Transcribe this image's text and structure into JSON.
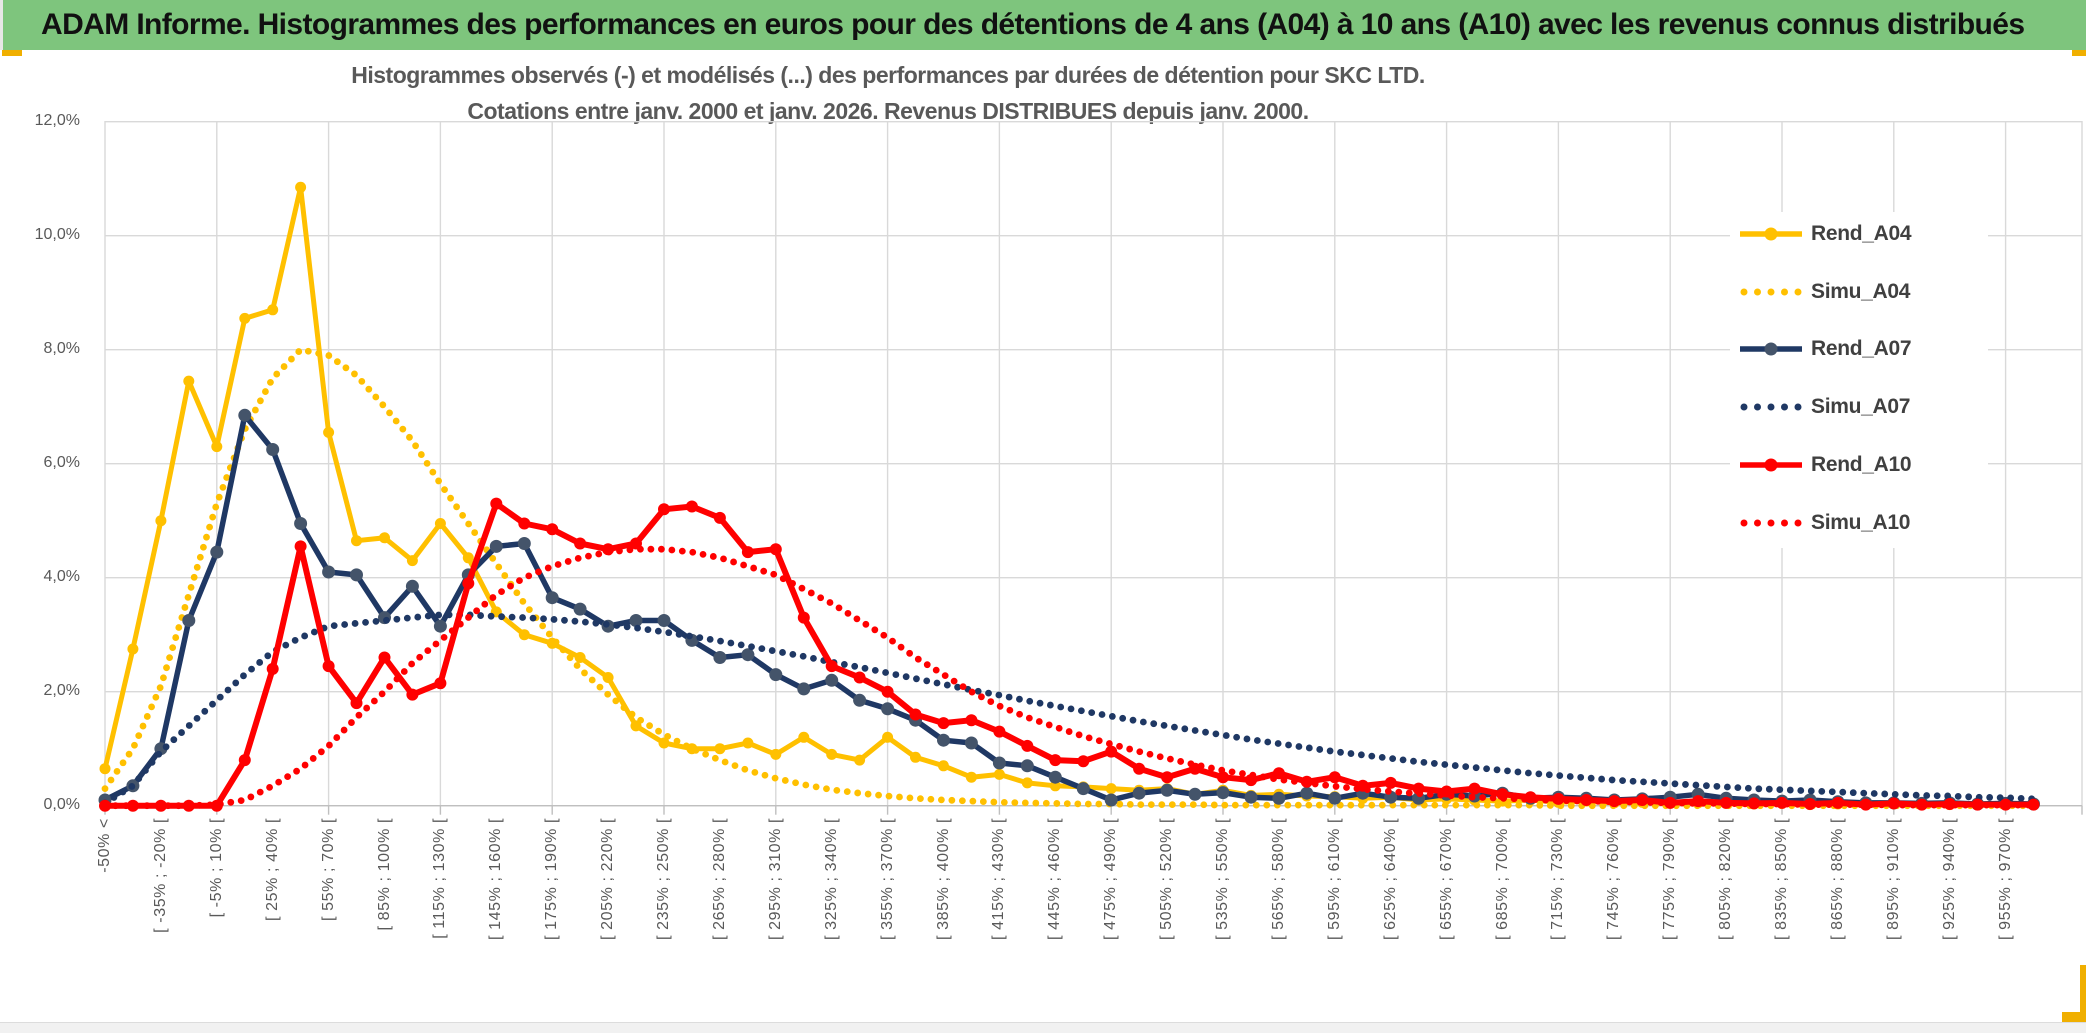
{
  "banner": {
    "title": "ADAM Informe. Histogrammes des performances en euros pour des détentions de 4 ans (A04) à 10 ans (A10) avec les revenus connus distribués"
  },
  "chart": {
    "title_line1": "Histogrammes observés (-) et modélisés (...) des performances par durées de détention pour SKC LTD.",
    "title_line2": "Cotations entre janv. 2000 et janv. 2026. Revenus DISTRIBUES depuis janv. 2000."
  },
  "colors": {
    "gold": "#FFC000",
    "navy": "#1F3864",
    "navy_marker": "#44546A",
    "red": "#FF0000",
    "grid": "#D9D9D9",
    "axis_line": "#BFBFBF",
    "axis_text": "#595959",
    "banner_green": "#7EC57D",
    "frame_gold": "#F0AF00"
  },
  "legend": [
    {
      "label": "Rend_A04",
      "color": "#FFC000",
      "style": "solid"
    },
    {
      "label": "Simu_A04",
      "color": "#FFC000",
      "style": "dotted"
    },
    {
      "label": "Rend_A07",
      "color": "#1F3864",
      "marker": "#44546A",
      "style": "solid"
    },
    {
      "label": "Simu_A07",
      "color": "#1F3864",
      "style": "dotted"
    },
    {
      "label": "Rend_A10",
      "color": "#FF0000",
      "style": "solid"
    },
    {
      "label": "Simu_A10",
      "color": "#FF0000",
      "style": "dotted"
    }
  ],
  "chart_data": {
    "type": "line",
    "title": "Histogrammes observés (-) et modélisés (...) des performances par durées de détention pour SKC LTD. Cotations entre janv. 2000 et janv. 2026. Revenus DISTRIBUES depuis janv. 2000.",
    "ylim": [
      0,
      12
    ],
    "y_unit": "percent",
    "grid": true,
    "legend_position": "right-inside",
    "y_tick_labels": [
      "0,0%",
      "2,0%",
      "4,0%",
      "6,0%",
      "8,0%",
      "10,0%",
      "12,0%"
    ],
    "n_points": 70,
    "x_label_interval": 2,
    "x_gridline_interval": 4,
    "x_tick_labels": [
      "-50% <",
      "[ -35% ; -20% [",
      "[ -5% ; 10% [",
      "[ 25% ; 40% [",
      "[ 55% ; 70% [",
      "[ 85% ; 100% [",
      "[ 115% ; 130% [",
      "[ 145% ; 160% [",
      "[ 175% ; 190% [",
      "[ 205% ; 220% [",
      "[ 235% ; 250% [",
      "[ 265% ; 280% [",
      "[ 295% ; 310% [",
      "[ 325% ; 340% [",
      "[ 355% ; 370% [",
      "[ 385% ; 400% [",
      "[ 415% ; 430% [",
      "[ 445% ; 460% [",
      "[ 475% ; 490% [",
      "[ 505% ; 520% [",
      "[ 535% ; 550% [",
      "[ 565% ; 580% [",
      "[ 595% ; 610% [",
      "[ 625% ; 640% [",
      "[ 655% ; 670% [",
      "[ 685% ; 700% [",
      "[ 715% ; 730% [",
      "[ 745% ; 760% [",
      "[ 775% ; 790% [",
      "[ 805% ; 820% [",
      "[ 835% ; 850% [",
      "[ 865% ; 880% [",
      "[ 895% ; 910% [",
      "[ 925% ; 940% [",
      "[ 955% ; 970% ["
    ],
    "series": [
      {
        "name": "Rend_A04",
        "style": "solid",
        "color": "#FFC000",
        "marker_color": "#FFC000",
        "width": 5,
        "marker_r": 5.5,
        "values": [
          0.65,
          2.75,
          5.0,
          7.45,
          6.3,
          8.55,
          8.7,
          10.85,
          6.55,
          4.65,
          4.7,
          4.3,
          4.95,
          4.35,
          3.4,
          3.0,
          2.85,
          2.6,
          2.25,
          1.4,
          1.1,
          1.0,
          1.0,
          1.1,
          0.9,
          1.2,
          0.9,
          0.8,
          1.2,
          0.85,
          0.7,
          0.5,
          0.55,
          0.4,
          0.35,
          0.33,
          0.3,
          0.27,
          0.3,
          0.2,
          0.27,
          0.18,
          0.2,
          0.17,
          0.16,
          0.13,
          0.15,
          0.1,
          0.12,
          0.1,
          0.08,
          0.1,
          0.06,
          0.08,
          0.05,
          0.06,
          0.04,
          0.05,
          0.04,
          0.03,
          0.04,
          0.02,
          0.03,
          0.02,
          0.03,
          0.02,
          0.02,
          0.03,
          0.02,
          0.02
        ]
      },
      {
        "name": "Simu_A04",
        "style": "dotted",
        "color": "#FFC000",
        "width": 6.8,
        "values": [
          0.3,
          1.0,
          2.1,
          3.7,
          5.3,
          6.6,
          7.5,
          8.0,
          7.9,
          7.55,
          7.0,
          6.4,
          5.65,
          4.95,
          4.25,
          3.55,
          2.95,
          2.4,
          1.95,
          1.55,
          1.25,
          1.0,
          0.8,
          0.62,
          0.48,
          0.37,
          0.28,
          0.22,
          0.17,
          0.13,
          0.1,
          0.08,
          0.06,
          0.05,
          0.04,
          0.03,
          0.03,
          0.02,
          0.02,
          0.02,
          0.01,
          0.01,
          0.01,
          0.01,
          0.01,
          0.01,
          0.01,
          0.01,
          0.01,
          0.01,
          0.01,
          0.01,
          0.0,
          0.0,
          0.0,
          0.0,
          0.0,
          0.0,
          0.0,
          0.0,
          0.0,
          0.0,
          0.0,
          0.0,
          0.0,
          0.0,
          0.0,
          0.0,
          0.0,
          0.0
        ]
      },
      {
        "name": "Rend_A07",
        "style": "solid",
        "color": "#1F3864",
        "marker_color": "#44546A",
        "width": 5.5,
        "marker_r": 6.5,
        "values": [
          0.1,
          0.35,
          1.0,
          3.25,
          4.45,
          6.85,
          6.25,
          4.95,
          4.1,
          4.05,
          3.3,
          3.85,
          3.15,
          4.05,
          4.55,
          4.6,
          3.65,
          3.45,
          3.15,
          3.25,
          3.25,
          2.9,
          2.6,
          2.65,
          2.3,
          2.05,
          2.2,
          1.85,
          1.7,
          1.5,
          1.15,
          1.1,
          0.75,
          0.7,
          0.5,
          0.3,
          0.1,
          0.22,
          0.27,
          0.2,
          0.23,
          0.15,
          0.13,
          0.22,
          0.13,
          0.22,
          0.15,
          0.13,
          0.2,
          0.17,
          0.22,
          0.13,
          0.15,
          0.13,
          0.1,
          0.12,
          0.15,
          0.2,
          0.13,
          0.1,
          0.08,
          0.1,
          0.07,
          0.05,
          0.05,
          0.04,
          0.05,
          0.03,
          0.04,
          0.03
        ]
      },
      {
        "name": "Simu_A07",
        "style": "dotted",
        "color": "#1F3864",
        "width": 6.8,
        "values": [
          0.05,
          0.35,
          0.95,
          1.4,
          1.85,
          2.3,
          2.7,
          2.95,
          3.15,
          3.2,
          3.25,
          3.3,
          3.35,
          3.35,
          3.32,
          3.3,
          3.27,
          3.23,
          3.18,
          3.12,
          3.05,
          2.97,
          2.89,
          2.8,
          2.71,
          2.62,
          2.52,
          2.43,
          2.33,
          2.23,
          2.13,
          2.03,
          1.94,
          1.84,
          1.75,
          1.66,
          1.57,
          1.48,
          1.4,
          1.32,
          1.24,
          1.16,
          1.09,
          1.02,
          0.95,
          0.89,
          0.83,
          0.77,
          0.72,
          0.67,
          0.62,
          0.57,
          0.53,
          0.49,
          0.45,
          0.42,
          0.39,
          0.36,
          0.33,
          0.3,
          0.28,
          0.26,
          0.24,
          0.22,
          0.2,
          0.18,
          0.17,
          0.15,
          0.14,
          0.12
        ]
      },
      {
        "name": "Rend_A10",
        "style": "solid",
        "color": "#FF0000",
        "marker_color": "#FF0000",
        "width": 6,
        "marker_r": 6,
        "values": [
          0,
          0,
          0,
          0,
          0,
          0.8,
          2.4,
          4.55,
          2.45,
          1.8,
          2.6,
          1.95,
          2.15,
          3.9,
          5.3,
          4.95,
          4.85,
          4.6,
          4.5,
          4.6,
          5.2,
          5.25,
          5.05,
          4.45,
          4.5,
          3.3,
          2.45,
          2.25,
          2.0,
          1.6,
          1.45,
          1.5,
          1.3,
          1.05,
          0.8,
          0.78,
          0.95,
          0.65,
          0.5,
          0.65,
          0.5,
          0.45,
          0.57,
          0.42,
          0.5,
          0.35,
          0.4,
          0.3,
          0.25,
          0.3,
          0.2,
          0.15,
          0.12,
          0.1,
          0.08,
          0.1,
          0.05,
          0.08,
          0.05,
          0.04,
          0.05,
          0.03,
          0.05,
          0.02,
          0.04,
          0.02,
          0.03,
          0.02,
          0.02,
          0.02
        ]
      },
      {
        "name": "Simu_A10",
        "style": "dotted",
        "color": "#FF0000",
        "width": 6.8,
        "values": [
          0,
          0,
          0,
          0,
          0.02,
          0.1,
          0.35,
          0.65,
          1.05,
          1.55,
          2.0,
          2.5,
          2.9,
          3.3,
          3.7,
          4.0,
          4.2,
          4.35,
          4.45,
          4.5,
          4.5,
          4.45,
          4.35,
          4.2,
          4.05,
          3.8,
          3.55,
          3.25,
          2.95,
          2.6,
          2.3,
          2.0,
          1.75,
          1.55,
          1.38,
          1.22,
          1.08,
          0.95,
          0.83,
          0.72,
          0.62,
          0.54,
          0.46,
          0.4,
          0.34,
          0.29,
          0.25,
          0.21,
          0.18,
          0.15,
          0.13,
          0.11,
          0.09,
          0.08,
          0.07,
          0.06,
          0.05,
          0.04,
          0.04,
          0.03,
          0.03,
          0.02,
          0.02,
          0.02,
          0.01,
          0.01,
          0.01,
          0.01,
          0.01,
          0.01
        ]
      }
    ]
  }
}
